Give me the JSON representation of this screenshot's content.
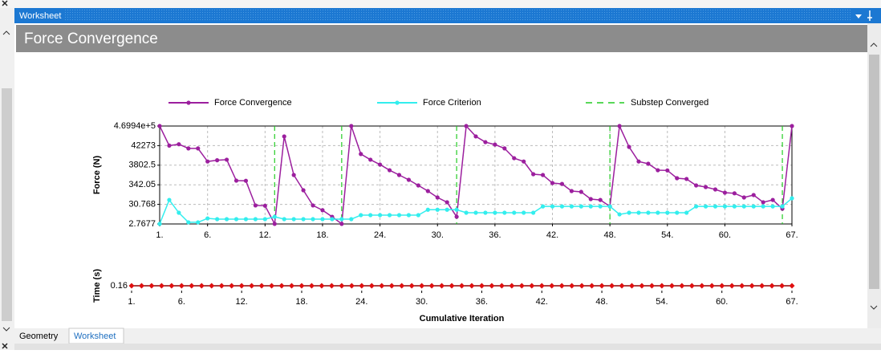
{
  "panel_title": "Worksheet",
  "heading": "Force Convergence",
  "tabs": [
    "Geometry",
    "Worksheet"
  ],
  "chart_data": [
    {
      "type": "line",
      "log_y": true,
      "grid": true,
      "legend": "top",
      "ylabel": "Force (N)",
      "x": [
        1,
        2,
        3,
        4,
        5,
        6,
        7,
        8,
        9,
        10,
        11,
        12,
        13,
        14,
        15,
        16,
        17,
        18,
        19,
        20,
        21,
        22,
        23,
        24,
        25,
        26,
        27,
        28,
        29,
        30,
        31,
        32,
        33,
        34,
        35,
        36,
        37,
        38,
        39,
        40,
        41,
        42,
        43,
        44,
        45,
        46,
        47,
        48,
        49,
        50,
        51,
        52,
        53,
        54,
        55,
        56,
        57,
        58,
        59,
        60,
        61,
        62,
        63,
        64,
        65,
        66,
        67
      ],
      "xlim": [
        1,
        67
      ],
      "xticks": [
        {
          "value": 1,
          "label": "1."
        },
        {
          "value": 6,
          "label": "6."
        },
        {
          "value": 12,
          "label": "12."
        },
        {
          "value": 18,
          "label": "18."
        },
        {
          "value": 24,
          "label": "24."
        },
        {
          "value": 30,
          "label": "30."
        },
        {
          "value": 36,
          "label": "36."
        },
        {
          "value": 42,
          "label": "42."
        },
        {
          "value": 48,
          "label": "48."
        },
        {
          "value": 54,
          "label": "54."
        },
        {
          "value": 60,
          "label": "60."
        },
        {
          "value": 67,
          "label": "67."
        }
      ],
      "ylim": [
        2.7677,
        469940
      ],
      "yticks": [
        2.7677,
        30.768,
        342.05,
        3802.5,
        42273,
        {
          "value": 469940,
          "label": "4.6994e+5"
        }
      ],
      "series": [
        {
          "name": "Force Convergence",
          "color": "#9c1f9e",
          "marker": "circle",
          "values": [
            469940,
            42273,
            50000,
            30000,
            30000,
            6000,
            7000,
            7500,
            570,
            560,
            27,
            26,
            2.8,
            131000,
            1140,
            175,
            27,
            15,
            6.7,
            2.8,
            469940,
            15000,
            7500,
            4100,
            2050,
            1140,
            630,
            316,
            158,
            72,
            40,
            6.7,
            469940,
            131000,
            65000,
            48000,
            30000,
            9000,
            6000,
            1260,
            1140,
            424,
            380,
            158,
            143,
            59,
            53,
            24,
            469940,
            36000,
            6000,
            4540,
            2050,
            2000,
            770,
            700,
            316,
            260,
            193,
            130,
            120,
            72,
            97,
            40,
            53,
            18,
            469940
          ]
        },
        {
          "name": "Force Criterion",
          "color": "#33eeee",
          "marker": "circle",
          "values": [
            2.8,
            53,
            11,
            3.4,
            3.4,
            5.5,
            5,
            5,
            5,
            5,
            5,
            5,
            6.7,
            5,
            5,
            5,
            5,
            5,
            5,
            5,
            5,
            8.2,
            8.2,
            8.2,
            8.2,
            8.2,
            8.2,
            8.2,
            16,
            16,
            16,
            16,
            11,
            11,
            11,
            11,
            11,
            11,
            11,
            11,
            24,
            24,
            24,
            24,
            24,
            24,
            24,
            24,
            9,
            11,
            11,
            11,
            11,
            11,
            11,
            11,
            24,
            24,
            24,
            24,
            24,
            24,
            24,
            24,
            24,
            24,
            65
          ]
        }
      ],
      "vlines": {
        "name": "Substep Converged",
        "color": "#22cc22",
        "x": [
          13,
          20,
          32,
          48,
          66
        ]
      }
    },
    {
      "type": "line",
      "ylabel": "Time (s)",
      "xlabel": "Cumulative Iteration",
      "x": [
        1,
        2,
        3,
        4,
        5,
        6,
        7,
        8,
        9,
        10,
        11,
        12,
        13,
        14,
        15,
        16,
        17,
        18,
        19,
        20,
        21,
        22,
        23,
        24,
        25,
        26,
        27,
        28,
        29,
        30,
        31,
        32,
        33,
        34,
        35,
        36,
        37,
        38,
        39,
        40,
        41,
        42,
        43,
        44,
        45,
        46,
        47,
        48,
        49,
        50,
        51,
        52,
        53,
        54,
        55,
        56,
        57,
        58,
        59,
        60,
        61,
        62,
        63,
        64,
        65,
        66,
        67
      ],
      "xlim": [
        1,
        67
      ],
      "xticks": [
        {
          "value": 1,
          "label": "1."
        },
        {
          "value": 6,
          "label": "6."
        },
        {
          "value": 12,
          "label": "12."
        },
        {
          "value": 18,
          "label": "18."
        },
        {
          "value": 24,
          "label": "24."
        },
        {
          "value": 30,
          "label": "30."
        },
        {
          "value": 36,
          "label": "36."
        },
        {
          "value": 42,
          "label": "42."
        },
        {
          "value": 48,
          "label": "48."
        },
        {
          "value": 54,
          "label": "54."
        },
        {
          "value": 60,
          "label": "60."
        },
        {
          "value": 67,
          "label": "67."
        }
      ],
      "ylim": [
        0.15,
        0.17
      ],
      "yticks": [
        0.16
      ],
      "series": [
        {
          "color": "#e01010",
          "marker": "diamond",
          "values": [
            0.16,
            0.16,
            0.16,
            0.16,
            0.16,
            0.16,
            0.16,
            0.16,
            0.16,
            0.16,
            0.16,
            0.16,
            0.16,
            0.16,
            0.16,
            0.16,
            0.16,
            0.16,
            0.16,
            0.16,
            0.16,
            0.16,
            0.16,
            0.16,
            0.16,
            0.16,
            0.16,
            0.16,
            0.16,
            0.16,
            0.16,
            0.16,
            0.16,
            0.16,
            0.16,
            0.16,
            0.16,
            0.16,
            0.16,
            0.16,
            0.16,
            0.16,
            0.16,
            0.16,
            0.16,
            0.16,
            0.16,
            0.16,
            0.16,
            0.16,
            0.16,
            0.16,
            0.16,
            0.16,
            0.16,
            0.16,
            0.16,
            0.16,
            0.16,
            0.16,
            0.16,
            0.16,
            0.16,
            0.16,
            0.16,
            0.16,
            0.16
          ]
        }
      ]
    }
  ]
}
